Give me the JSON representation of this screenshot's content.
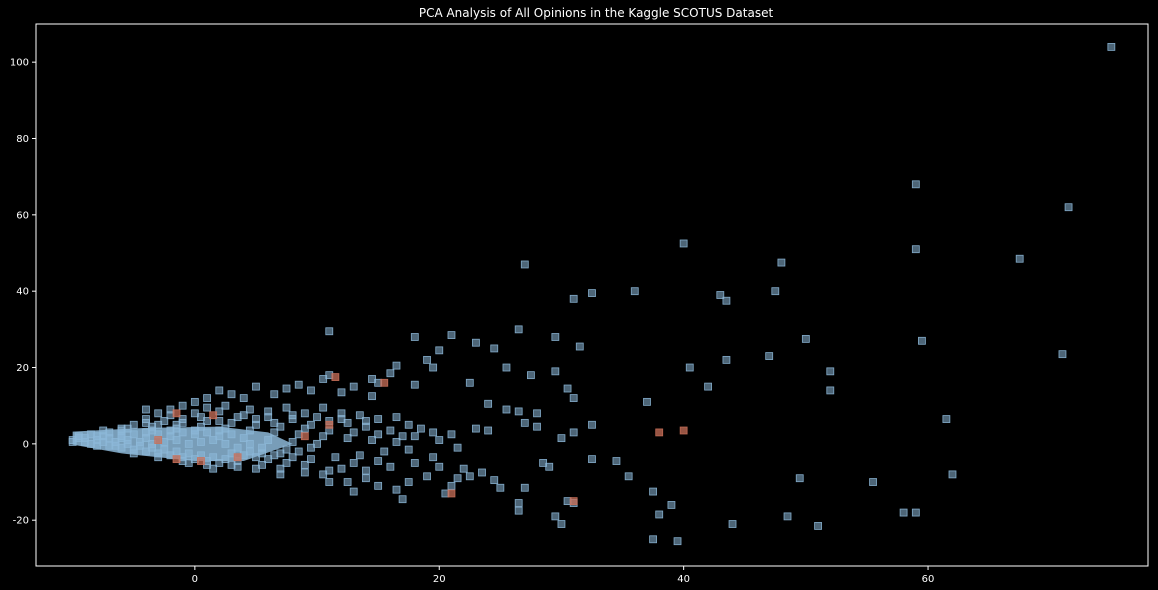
{
  "chart_data": {
    "type": "scatter",
    "title": "PCA Analysis of All Opinions in the Kaggle SCOTUS Dataset",
    "xlabel": "",
    "ylabel": "",
    "xlim": [
      -13,
      78
    ],
    "ylim": [
      -32,
      110
    ],
    "xticks": [
      0,
      20,
      40,
      60
    ],
    "yticks": [
      -20,
      0,
      20,
      40,
      60,
      80,
      100
    ],
    "grid": false,
    "legend": "none",
    "colors": {
      "background": "#000000",
      "axes": "#ffffff",
      "series_main": "#8db8d8",
      "series_highlight": "#c9705a"
    },
    "series": [
      {
        "color": "#8db8d8",
        "points": [
          [
            75.0,
            104.0
          ],
          [
            59.0,
            68.0
          ],
          [
            71.5,
            62.0
          ],
          [
            59.0,
            51.0
          ],
          [
            40.0,
            52.5
          ],
          [
            48.0,
            47.5
          ],
          [
            67.5,
            48.5
          ],
          [
            27.0,
            47.0
          ],
          [
            36.0,
            40.0
          ],
          [
            31.0,
            38.0
          ],
          [
            32.5,
            39.5
          ],
          [
            43.0,
            39.0
          ],
          [
            43.5,
            37.5
          ],
          [
            47.5,
            40.0
          ],
          [
            26.5,
            30.0
          ],
          [
            29.5,
            28.0
          ],
          [
            31.5,
            25.5
          ],
          [
            50.0,
            27.5
          ],
          [
            59.5,
            27.0
          ],
          [
            47.0,
            23.0
          ],
          [
            43.5,
            22.0
          ],
          [
            71.0,
            23.5
          ],
          [
            40.5,
            20.0
          ],
          [
            52.0,
            19.0
          ],
          [
            42.0,
            15.0
          ],
          [
            52.0,
            14.0
          ],
          [
            37.0,
            11.0
          ],
          [
            61.5,
            6.5
          ],
          [
            32.5,
            5.0
          ],
          [
            11.0,
            29.5
          ],
          [
            18.0,
            28.0
          ],
          [
            21.0,
            28.5
          ],
          [
            23.0,
            26.5
          ],
          [
            24.5,
            25.0
          ],
          [
            20.0,
            24.5
          ],
          [
            25.5,
            20.0
          ],
          [
            27.5,
            18.0
          ],
          [
            29.5,
            19.0
          ],
          [
            30.5,
            14.5
          ],
          [
            31.0,
            12.0
          ],
          [
            19.0,
            22.0
          ],
          [
            19.5,
            20.0
          ],
          [
            14.5,
            17.0
          ],
          [
            16.5,
            20.5
          ],
          [
            22.5,
            16.0
          ],
          [
            24.0,
            10.5
          ],
          [
            28.0,
            8.0
          ],
          [
            25.5,
            9.0
          ],
          [
            26.5,
            8.5
          ],
          [
            21.0,
            2.5
          ],
          [
            23.0,
            4.0
          ],
          [
            24.0,
            3.5
          ],
          [
            27.0,
            5.5
          ],
          [
            28.0,
            4.5
          ],
          [
            30.0,
            1.5
          ],
          [
            31.0,
            3.0
          ],
          [
            34.5,
            -4.5
          ],
          [
            32.5,
            -4.0
          ],
          [
            35.5,
            -8.5
          ],
          [
            37.5,
            -12.5
          ],
          [
            39.0,
            -16.0
          ],
          [
            38.0,
            -18.5
          ],
          [
            37.5,
            -25.0
          ],
          [
            39.5,
            -25.5
          ],
          [
            44.0,
            -21.0
          ],
          [
            48.5,
            -19.0
          ],
          [
            51.0,
            -21.5
          ],
          [
            49.5,
            -9.0
          ],
          [
            55.5,
            -10.0
          ],
          [
            58.0,
            -18.0
          ],
          [
            59.0,
            -18.0
          ],
          [
            62.0,
            -8.0
          ],
          [
            30.5,
            -15.0
          ],
          [
            31.0,
            -15.5
          ],
          [
            29.5,
            -19.0
          ],
          [
            30.0,
            -21.0
          ],
          [
            26.5,
            -17.5
          ],
          [
            26.5,
            -15.5
          ],
          [
            25.0,
            -11.5
          ],
          [
            24.5,
            -9.5
          ],
          [
            27.0,
            -11.5
          ],
          [
            28.5,
            -5.0
          ],
          [
            29.0,
            -6.0
          ],
          [
            23.5,
            -7.5
          ],
          [
            22.5,
            -8.5
          ],
          [
            21.5,
            -9.0
          ],
          [
            21.0,
            -11.0
          ],
          [
            20.5,
            -13.0
          ],
          [
            19.0,
            -8.5
          ],
          [
            17.5,
            -10.0
          ],
          [
            16.5,
            -12.0
          ],
          [
            17.0,
            -14.5
          ],
          [
            15.0,
            -11.0
          ],
          [
            14.0,
            -9.0
          ],
          [
            13.0,
            -12.5
          ],
          [
            12.5,
            -10.0
          ],
          [
            11.0,
            -10.0
          ],
          [
            10.5,
            -8.0
          ],
          [
            18.0,
            15.5
          ],
          [
            16.0,
            18.5
          ],
          [
            15.0,
            16.0
          ],
          [
            14.5,
            12.5
          ],
          [
            13.0,
            15.0
          ],
          [
            12.0,
            13.5
          ],
          [
            11.0,
            18.0
          ],
          [
            10.5,
            17.0
          ],
          [
            9.5,
            14.0
          ],
          [
            8.5,
            15.5
          ],
          [
            7.5,
            14.5
          ],
          [
            6.5,
            13.0
          ],
          [
            5.0,
            15.0
          ],
          [
            4.0,
            12.0
          ],
          [
            2.0,
            14.0
          ],
          [
            3.0,
            13.0
          ],
          [
            1.0,
            12.0
          ],
          [
            0.0,
            11.0
          ],
          [
            -1.0,
            10.0
          ],
          [
            -2.0,
            9.0
          ],
          [
            -3.0,
            8.0
          ],
          [
            -4.0,
            9.0
          ],
          [
            1.0,
            9.5
          ],
          [
            2.5,
            10.0
          ],
          [
            4.5,
            9.0
          ],
          [
            6.0,
            8.5
          ],
          [
            7.5,
            9.5
          ],
          [
            9.0,
            8.0
          ],
          [
            10.5,
            9.5
          ],
          [
            12.0,
            8.0
          ],
          [
            13.5,
            7.5
          ],
          [
            15.0,
            6.5
          ],
          [
            16.5,
            7.0
          ],
          [
            17.5,
            5.0
          ],
          [
            18.5,
            4.0
          ],
          [
            19.5,
            3.0
          ],
          [
            20.0,
            1.0
          ],
          [
            18.0,
            2.0
          ],
          [
            16.0,
            3.5
          ],
          [
            14.0,
            4.5
          ],
          [
            12.5,
            5.5
          ],
          [
            11.0,
            6.0
          ],
          [
            9.5,
            5.0
          ],
          [
            8.0,
            6.5
          ],
          [
            6.5,
            5.5
          ],
          [
            5.0,
            6.5
          ],
          [
            3.5,
            7.0
          ],
          [
            2.0,
            6.0
          ],
          [
            0.5,
            7.0
          ],
          [
            -1.0,
            6.5
          ],
          [
            -2.5,
            6.0
          ],
          [
            -4.0,
            5.5
          ],
          [
            -5.0,
            5.0
          ],
          [
            -6.0,
            4.0
          ],
          [
            -7.0,
            3.0
          ],
          [
            -3.5,
            3.5
          ],
          [
            -1.5,
            4.0
          ],
          [
            0.5,
            4.5
          ],
          [
            2.5,
            4.0
          ],
          [
            4.5,
            3.5
          ],
          [
            6.5,
            3.0
          ],
          [
            8.5,
            2.5
          ],
          [
            10.5,
            2.0
          ],
          [
            12.5,
            1.5
          ],
          [
            14.5,
            1.0
          ],
          [
            16.5,
            0.5
          ],
          [
            17.5,
            -1.5
          ],
          [
            15.5,
            -2.0
          ],
          [
            13.5,
            -3.0
          ],
          [
            11.5,
            -3.5
          ],
          [
            9.5,
            -4.0
          ],
          [
            7.5,
            -5.0
          ],
          [
            5.5,
            -5.5
          ],
          [
            3.5,
            -6.0
          ],
          [
            1.5,
            -6.5
          ],
          [
            -0.5,
            -5.0
          ],
          [
            12.0,
            -6.5
          ],
          [
            14.0,
            -7.0
          ],
          [
            16.0,
            -6.0
          ],
          [
            18.0,
            -5.0
          ],
          [
            19.5,
            -3.5
          ],
          [
            21.5,
            -1.0
          ],
          [
            22.0,
            -6.5
          ],
          [
            20.0,
            -6.0
          ],
          [
            15.0,
            -4.5
          ],
          [
            13.0,
            -5.0
          ],
          [
            11.0,
            -7.0
          ],
          [
            9.0,
            -7.5
          ],
          [
            7.0,
            -8.0
          ],
          [
            10.0,
            0.0
          ],
          [
            8.0,
            0.5
          ],
          [
            6.0,
            1.0
          ],
          [
            4.0,
            1.5
          ],
          [
            2.0,
            2.0
          ],
          [
            0.0,
            2.5
          ],
          [
            -2.0,
            2.0
          ],
          [
            -4.0,
            1.5
          ],
          [
            -6.0,
            1.5
          ],
          [
            -8.0,
            1.0
          ],
          [
            -9.0,
            0.5
          ],
          [
            -10.0,
            1.0
          ],
          [
            -9.5,
            2.0
          ],
          [
            -8.5,
            2.5
          ],
          [
            -7.5,
            2.0
          ],
          [
            -6.5,
            0.5
          ],
          [
            -5.5,
            0.0
          ],
          [
            -4.5,
            -0.5
          ],
          [
            -3.5,
            -1.0
          ],
          [
            -2.5,
            -1.5
          ],
          [
            -1.5,
            -2.0
          ],
          [
            -0.5,
            -2.5
          ],
          [
            0.5,
            -3.0
          ],
          [
            1.5,
            -3.5
          ],
          [
            2.5,
            -4.0
          ],
          [
            3.5,
            -4.5
          ],
          [
            4.5,
            -2.0
          ],
          [
            5.5,
            -2.5
          ],
          [
            6.5,
            -3.0
          ],
          [
            7.5,
            -1.5
          ],
          [
            8.5,
            -2.0
          ],
          [
            9.5,
            -1.0
          ],
          [
            -8.0,
            -0.5
          ],
          [
            -7.0,
            -0.5
          ],
          [
            -6.0,
            -1.0
          ],
          [
            -5.0,
            -1.5
          ],
          [
            -4.0,
            -2.0
          ],
          [
            -3.0,
            -2.5
          ],
          [
            -2.0,
            -3.0
          ],
          [
            -1.0,
            -3.5
          ],
          [
            0.0,
            -4.0
          ],
          [
            1.0,
            -4.5
          ],
          [
            2.0,
            -5.0
          ],
          [
            3.0,
            -2.5
          ],
          [
            4.0,
            -3.0
          ],
          [
            5.0,
            -3.5
          ],
          [
            6.0,
            -4.0
          ],
          [
            7.0,
            -2.5
          ],
          [
            8.0,
            -3.5
          ],
          [
            -9.0,
            1.5
          ],
          [
            -8.5,
            0.0
          ],
          [
            -7.5,
            0.5
          ],
          [
            -6.5,
            -0.5
          ],
          [
            -5.5,
            1.0
          ],
          [
            -4.5,
            0.5
          ],
          [
            -3.5,
            0.0
          ],
          [
            -2.5,
            0.5
          ],
          [
            -1.5,
            1.0
          ],
          [
            -0.5,
            0.0
          ],
          [
            0.5,
            0.5
          ],
          [
            1.5,
            1.0
          ],
          [
            2.5,
            0.0
          ],
          [
            3.5,
            -1.0
          ],
          [
            4.5,
            0.0
          ],
          [
            5.5,
            -1.0
          ],
          [
            -7.0,
            1.5
          ],
          [
            -6.0,
            2.0
          ],
          [
            -5.0,
            2.5
          ],
          [
            -4.0,
            3.0
          ],
          [
            -3.0,
            2.5
          ],
          [
            -2.0,
            3.5
          ],
          [
            -1.0,
            3.0
          ],
          [
            0.0,
            3.5
          ],
          [
            1.0,
            3.0
          ],
          [
            2.0,
            3.5
          ],
          [
            3.0,
            2.5
          ],
          [
            -8.0,
            2.0
          ],
          [
            -9.5,
            1.5
          ],
          [
            -10.0,
            0.5
          ],
          [
            -3.0,
            5.0
          ],
          [
            -1.0,
            5.5
          ],
          [
            1.0,
            6.0
          ],
          [
            3.0,
            5.5
          ],
          [
            5.0,
            5.0
          ],
          [
            7.0,
            4.5
          ],
          [
            9.0,
            4.0
          ],
          [
            11.0,
            3.5
          ],
          [
            13.0,
            3.0
          ],
          [
            15.0,
            2.5
          ],
          [
            17.0,
            2.0
          ],
          [
            -2.0,
            7.5
          ],
          [
            0.0,
            8.0
          ],
          [
            2.0,
            8.5
          ],
          [
            4.0,
            7.5
          ],
          [
            6.0,
            7.0
          ],
          [
            8.0,
            7.5
          ],
          [
            10.0,
            7.0
          ],
          [
            12.0,
            6.5
          ],
          [
            14.0,
            6.0
          ],
          [
            -5.0,
            -2.5
          ],
          [
            -3.0,
            -3.5
          ],
          [
            -1.0,
            -4.5
          ],
          [
            1.0,
            -5.5
          ],
          [
            3.0,
            -5.5
          ],
          [
            5.0,
            -6.5
          ],
          [
            7.0,
            -6.5
          ],
          [
            9.0,
            -5.5
          ],
          [
            -4.0,
            6.5
          ],
          [
            -6.0,
            3.5
          ],
          [
            -7.5,
            3.5
          ],
          [
            -5.5,
            4.0
          ],
          [
            -3.5,
            4.5
          ],
          [
            -1.5,
            5.0
          ]
        ]
      },
      {
        "color": "#c9705a",
        "points": [
          [
            11.5,
            17.5
          ],
          [
            15.5,
            16.0
          ],
          [
            -1.5,
            8.0
          ],
          [
            38.0,
            3.0
          ],
          [
            40.0,
            3.5
          ],
          [
            31.0,
            -15.0
          ],
          [
            21.0,
            -13.0
          ],
          [
            -1.5,
            -4.0
          ],
          [
            0.5,
            -4.5
          ],
          [
            3.5,
            -3.5
          ],
          [
            11.0,
            5.0
          ],
          [
            1.5,
            7.5
          ],
          [
            -3.0,
            1.0
          ],
          [
            9.0,
            2.0
          ]
        ]
      }
    ]
  }
}
